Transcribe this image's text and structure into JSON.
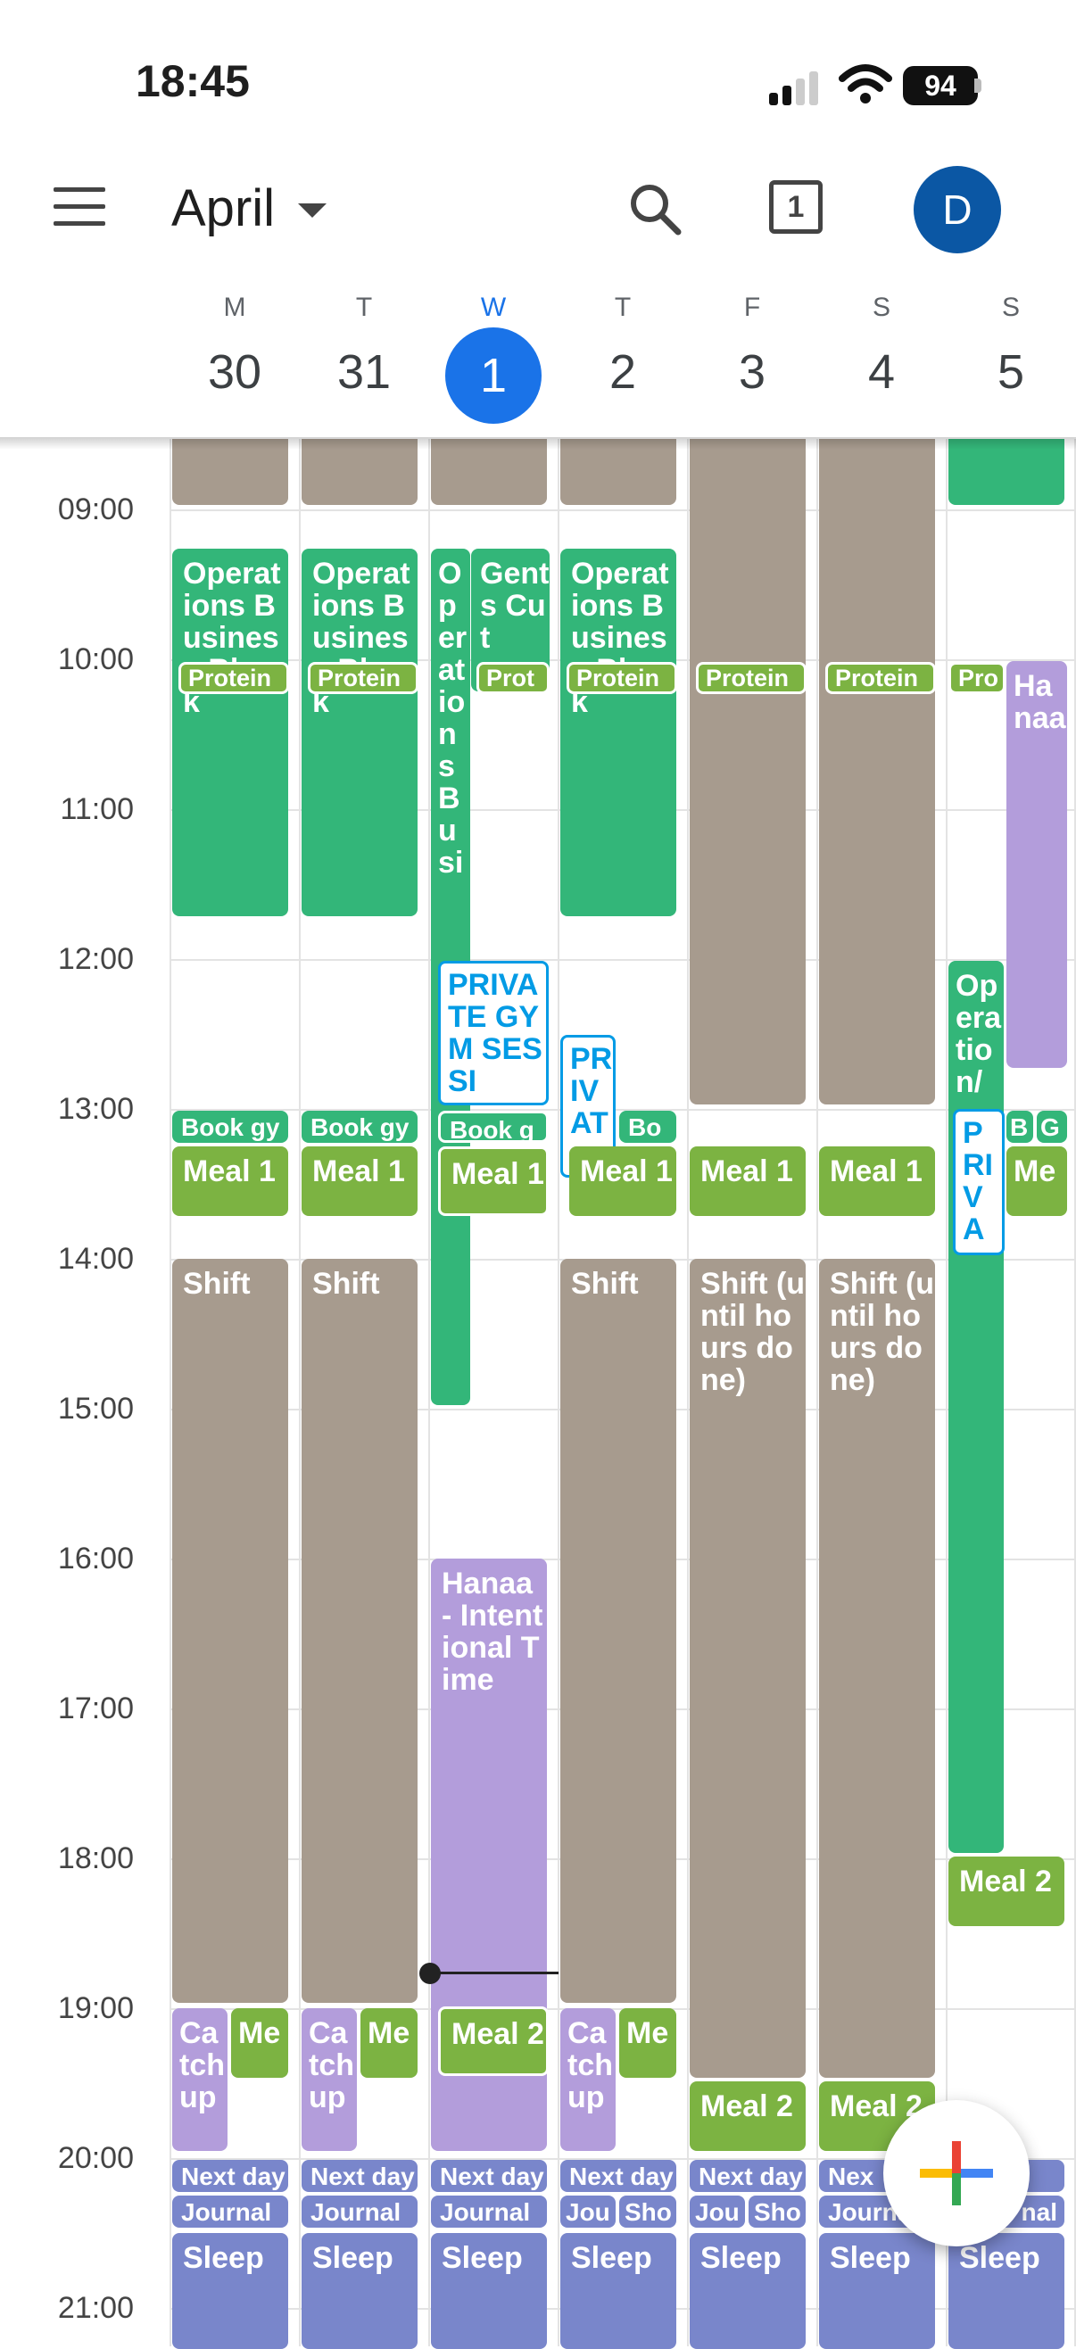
{
  "status": {
    "time": "18:45",
    "battery": "94"
  },
  "header": {
    "month": "April",
    "avatar": "D",
    "today_num": "1"
  },
  "days": [
    {
      "dow": "M",
      "num": "30"
    },
    {
      "dow": "T",
      "num": "31"
    },
    {
      "dow": "W",
      "num": "1"
    },
    {
      "dow": "T",
      "num": "2"
    },
    {
      "dow": "F",
      "num": "3"
    },
    {
      "dow": "S",
      "num": "4"
    },
    {
      "dow": "S",
      "num": "5"
    }
  ],
  "hours": [
    "09:00",
    "10:00",
    "11:00",
    "12:00",
    "13:00",
    "14:00",
    "15:00",
    "16:00",
    "17:00",
    "18:00",
    "19:00",
    "20:00",
    "21:00"
  ],
  "events": {
    "ops": "Operations Business Block",
    "ops_w": "OperationsBusi",
    "ops_s": "Operation/",
    "gents": "Gents Cut",
    "protein": "Protein",
    "pro": "Pro",
    "prot": "Prot",
    "hanaa_sun": "Hanaa",
    "private": "PRIVATE GYM SESSI",
    "priv_t": "PRIVAT",
    "priva_s": "PRIVA",
    "book": "Book gy",
    "boo": "Boo",
    "b": "B",
    "g": "G",
    "meal1": "Meal 1",
    "me": "Me",
    "shift": "Shift",
    "shift_until": "Shift (until hours done)",
    "hanaa_intent": "Hanaa - Intentional Time",
    "meal2": "Meal 2",
    "catch": "Catch up",
    "nextday": "Next day",
    "nex": "Nex",
    "journal": "Journal",
    "jou": "Jou",
    "sho": "Sho",
    "nal": "nal",
    "sleep": "Sleep"
  }
}
